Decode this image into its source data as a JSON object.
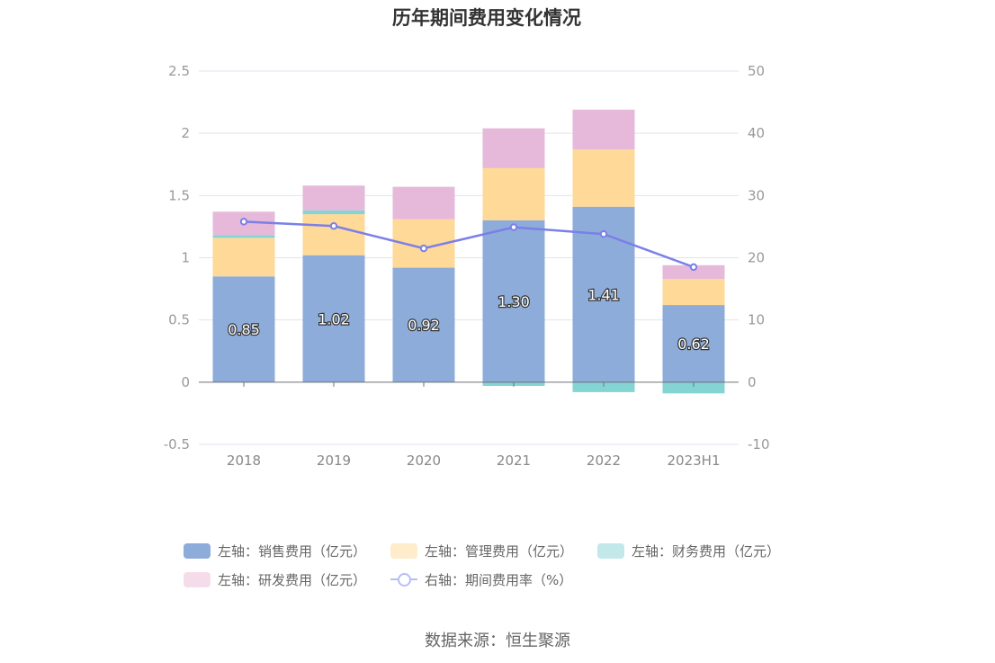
{
  "title": "历年期间费用变化情况",
  "source": "数据来源：恒生聚源",
  "chart_data": {
    "type": "bar",
    "stacked": true,
    "categories": [
      "2018",
      "2019",
      "2020",
      "2021",
      "2022",
      "2023H1"
    ],
    "left_axis": {
      "ticks": [
        "2.5",
        "2",
        "1.5",
        "1",
        "0.5",
        "0",
        "-0.5"
      ],
      "ylim": [
        -0.5,
        2.5
      ]
    },
    "right_axis": {
      "ticks": [
        "50",
        "40",
        "30",
        "20",
        "10",
        "0",
        "-10"
      ],
      "ylim": [
        -10,
        50
      ]
    },
    "grid": true,
    "legend_position": "bottom",
    "series": [
      {
        "name": "左轴：销售费用（亿元）",
        "axis": "left",
        "color": "#8eacd9",
        "values": [
          0.85,
          1.02,
          0.92,
          1.3,
          1.41,
          0.62
        ],
        "labels": [
          "0.85",
          "1.02",
          "0.92",
          "1.30",
          "1.41",
          "0.62"
        ]
      },
      {
        "name": "左轴：管理费用（亿元）",
        "axis": "left",
        "color": "#fed998",
        "values": [
          0.31,
          0.33,
          0.39,
          0.42,
          0.46,
          0.21
        ]
      },
      {
        "name": "左轴：财务费用（亿元）",
        "axis": "left",
        "color": "#85d4d4",
        "values": [
          0.02,
          0.03,
          0.0,
          -0.03,
          -0.08,
          -0.09
        ]
      },
      {
        "name": "左轴：研发费用（亿元）",
        "axis": "left",
        "color": "#e6b9da",
        "values": [
          0.19,
          0.2,
          0.26,
          0.32,
          0.32,
          0.11
        ]
      },
      {
        "name": "右轴：期间费用率（%）",
        "axis": "right",
        "type": "line",
        "color": "#7b7fe8",
        "values": [
          25.8,
          25.1,
          21.5,
          24.9,
          23.8,
          18.5
        ]
      }
    ],
    "legend_colors": [
      "#8eacd9",
      "#ffeccb",
      "#c2e8ea",
      "#f5dcea",
      "#b9bdf5"
    ]
  }
}
